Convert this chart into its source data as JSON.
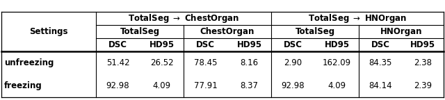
{
  "col_group_labels": [
    "TotalSeg → ChestOrgan",
    "TotalSeg → HNOrgan"
  ],
  "sub_group_labels": [
    "TotalSeg",
    "ChestOrgan",
    "TotalSeg",
    "HNOrgan"
  ],
  "leaf_headers": [
    "DSC",
    "HD95",
    "DSC",
    "HD95",
    "DSC",
    "HD95",
    "DSC",
    "HD95"
  ],
  "row_labels": [
    "Settings",
    "unfreezing",
    "freezing"
  ],
  "rows": [
    [
      "51.42",
      "26.52",
      "78.45",
      "8.16",
      "2.90",
      "162.09",
      "84.35",
      "2.38"
    ],
    [
      "92.98",
      "4.09",
      "77.91",
      "8.37",
      "92.98",
      "4.09",
      "84.14",
      "2.39"
    ]
  ],
  "background": "#ffffff",
  "line_color": "#000000",
  "font_size": 8.5,
  "bold_font_size": 8.5
}
